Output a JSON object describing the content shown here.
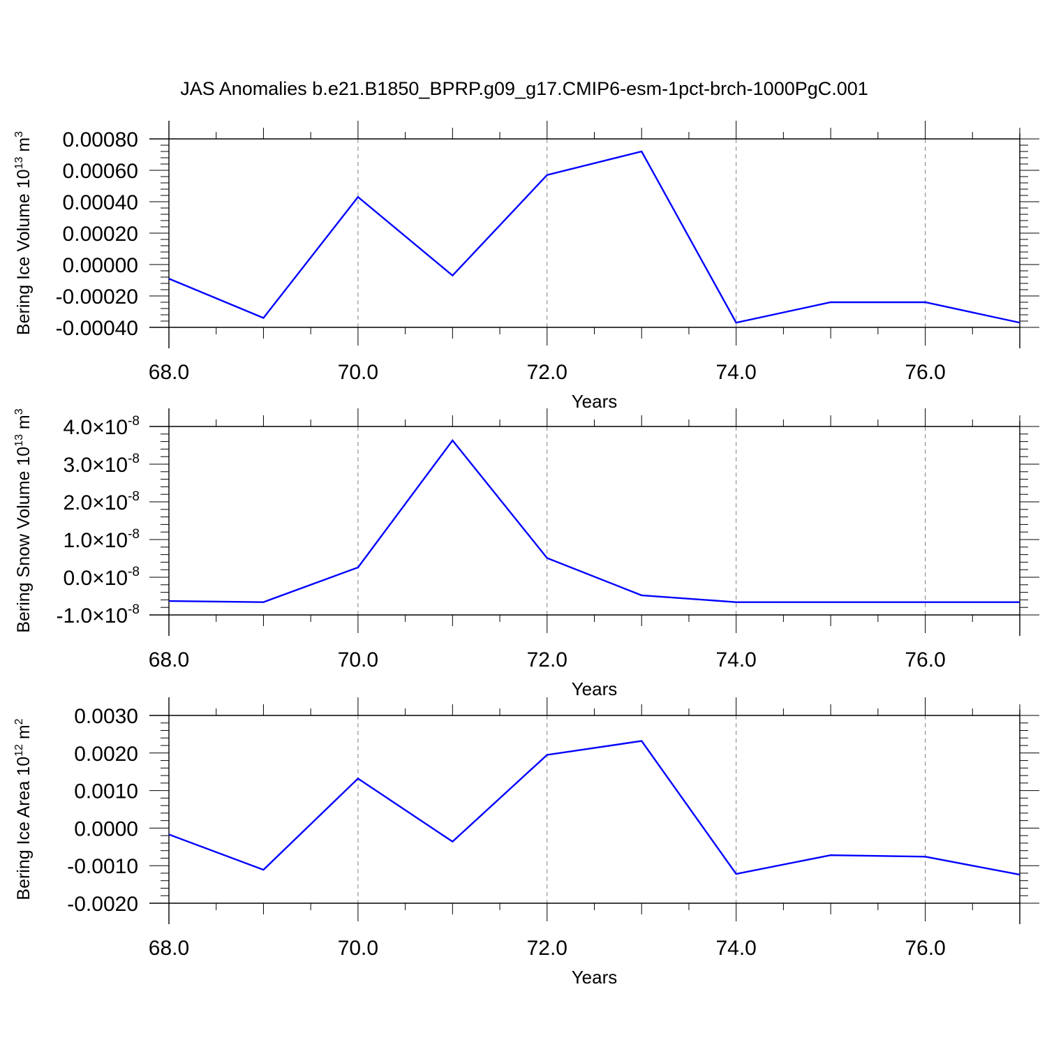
{
  "title": "JAS Anomalies b.e21.B1850_BPRP.g09_g17.CMIP6-esm-1pct-brch-1000PgC.001",
  "colors": {
    "line": "#0000ff",
    "axis": "#000000",
    "grid": "#808080",
    "background": "#ffffff"
  },
  "chart_data": [
    {
      "type": "line",
      "xlabel": "Years",
      "ylabel": {
        "main": "Bering Ice Volume 10",
        "sup": "13",
        "unit": " m",
        "unit_sup": "3"
      },
      "x": [
        68,
        69,
        70,
        71,
        72,
        73,
        74,
        75,
        76,
        77
      ],
      "series": [
        {
          "values": [
            -9e-05,
            -0.00034,
            0.00043,
            -7e-05,
            0.00057,
            0.00072,
            -0.00037,
            -0.00024,
            -0.00024,
            -0.00037
          ]
        }
      ],
      "xlim": [
        68,
        77
      ],
      "ylim": [
        -0.0004,
        0.0008
      ],
      "xticks": [
        {
          "value": 68,
          "label": "68.0"
        },
        {
          "value": 70,
          "label": "70.0"
        },
        {
          "value": 72,
          "label": "72.0"
        },
        {
          "value": 74,
          "label": "74.0"
        },
        {
          "value": 76,
          "label": "76.0"
        }
      ],
      "yticks": [
        {
          "value": 0.0008,
          "label": "0.00080"
        },
        {
          "value": 0.0006,
          "label": "0.00060"
        },
        {
          "value": 0.0004,
          "label": "0.00040"
        },
        {
          "value": 0.0002,
          "label": "0.00020"
        },
        {
          "value": 0.0,
          "label": "0.00000"
        },
        {
          "value": -0.0002,
          "label": "-0.00020"
        },
        {
          "value": -0.0004,
          "label": "-0.00040"
        }
      ],
      "grid": "vertical-dashed"
    },
    {
      "type": "line",
      "xlabel": "Years",
      "ylabel": {
        "main": "Bering Snow Volume 10",
        "sup": "13",
        "unit": " m",
        "unit_sup": "3"
      },
      "x": [
        68,
        69,
        70,
        71,
        72,
        73,
        74,
        75,
        76,
        77
      ],
      "series": [
        {
          "values": [
            -6.3e-09,
            -6.6e-09,
            2.6e-09,
            3.63e-08,
            5.1e-09,
            -4.8e-09,
            -6.6e-09,
            -6.6e-09,
            -6.6e-09,
            -6.6e-09
          ]
        }
      ],
      "xlim": [
        68,
        77
      ],
      "ylim": [
        -1e-08,
        4e-08
      ],
      "xticks": [
        {
          "value": 68,
          "label": "68.0"
        },
        {
          "value": 70,
          "label": "70.0"
        },
        {
          "value": 72,
          "label": "72.0"
        },
        {
          "value": 74,
          "label": "74.0"
        },
        {
          "value": 76,
          "label": "76.0"
        }
      ],
      "yticks": [
        {
          "value": 4e-08,
          "mant": "4.0",
          "times": "×10",
          "exp": "-8"
        },
        {
          "value": 3e-08,
          "mant": "3.0",
          "times": "×10",
          "exp": "-8"
        },
        {
          "value": 2e-08,
          "mant": "2.0",
          "times": "×10",
          "exp": "-8"
        },
        {
          "value": 1e-08,
          "mant": "1.0",
          "times": "×10",
          "exp": "-8"
        },
        {
          "value": 0.0,
          "mant": "0.0",
          "times": "×10",
          "exp": "-8"
        },
        {
          "value": -1e-08,
          "mant": "-1.0",
          "times": "×10",
          "exp": "-8"
        }
      ],
      "grid": "vertical-dashed"
    },
    {
      "type": "line",
      "xlabel": "Years",
      "ylabel": {
        "main": "Bering Ice Area 10",
        "sup": "12",
        "unit": " m",
        "unit_sup": "2"
      },
      "x": [
        68,
        69,
        70,
        71,
        72,
        73,
        74,
        75,
        76,
        77
      ],
      "series": [
        {
          "values": [
            -0.00017,
            -0.00111,
            0.00132,
            -0.00036,
            0.00195,
            0.00232,
            -0.00122,
            -0.00072,
            -0.00076,
            -0.00124
          ]
        }
      ],
      "xlim": [
        68,
        77
      ],
      "ylim": [
        -0.002,
        0.003
      ],
      "xticks": [
        {
          "value": 68,
          "label": "68.0"
        },
        {
          "value": 70,
          "label": "70.0"
        },
        {
          "value": 72,
          "label": "72.0"
        },
        {
          "value": 74,
          "label": "74.0"
        },
        {
          "value": 76,
          "label": "76.0"
        }
      ],
      "yticks": [
        {
          "value": 0.003,
          "label": "0.0030"
        },
        {
          "value": 0.002,
          "label": "0.0020"
        },
        {
          "value": 0.001,
          "label": "0.0010"
        },
        {
          "value": 0.0,
          "label": "0.0000"
        },
        {
          "value": -0.001,
          "label": "-0.0010"
        },
        {
          "value": -0.002,
          "label": "-0.0020"
        }
      ],
      "grid": "vertical-dashed"
    }
  ]
}
